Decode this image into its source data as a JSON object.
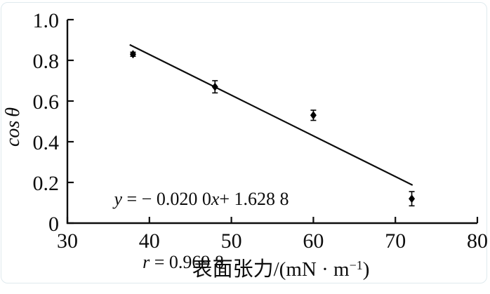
{
  "chart_data": {
    "type": "scatter",
    "title": "",
    "xlabel": "表面张力/(mN · m−1)",
    "ylabel": "cos θ",
    "xlabel_parts": {
      "main": "表面张力/(mN · m",
      "sup": "−1",
      "close": ")"
    },
    "ylabel_parts": {
      "prefix": "cos",
      "symbol": "θ"
    },
    "xlim": [
      30,
      80
    ],
    "ylim": [
      0,
      1.0
    ],
    "x_ticks": [
      30,
      40,
      50,
      60,
      70,
      80
    ],
    "x_tick_labels": [
      "30",
      "40",
      "50",
      "60",
      "70",
      "80"
    ],
    "y_ticks": [
      0,
      0.2,
      0.4,
      0.6,
      0.8,
      1.0
    ],
    "y_tick_labels": [
      "0",
      "0.2",
      "0.4",
      "0.6",
      "0.8",
      "1.0"
    ],
    "grid": false,
    "legend": "none",
    "marker": "diamond",
    "points": [
      {
        "x": 38,
        "y": 0.83,
        "error": 0.01
      },
      {
        "x": 48,
        "y": 0.67,
        "error": 0.03
      },
      {
        "x": 60,
        "y": 0.53,
        "error": 0.025
      },
      {
        "x": 72,
        "y": 0.12,
        "error": 0.035
      }
    ],
    "fit_line": {
      "slope": -0.02,
      "intercept": 1.6288,
      "x_start": 37.6,
      "x_end": 72.1,
      "equation_text": "y = − 0.020 0x+ 1.628 8",
      "r_text": "r = 0.969 8"
    },
    "annotation": {
      "line1": {
        "v1": "y",
        "t1": " = − 0.020 0",
        "v2": "x",
        "t2": "+ 1.628 8"
      },
      "line2": {
        "v1": "r",
        "t1": " = 0.969 8"
      }
    },
    "colors": {
      "axis": "#0d0d0d",
      "points": "#000000",
      "fit_line": "#0d0d0d",
      "frame_border": "#dfeaee"
    }
  }
}
